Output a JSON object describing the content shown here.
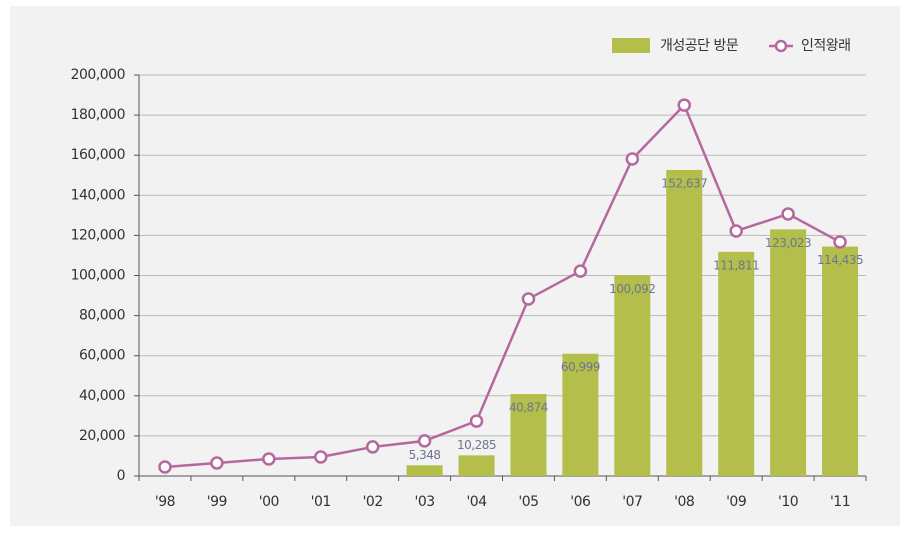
{
  "chart_data": {
    "type": "bar-line",
    "categories": [
      "'98",
      "'99",
      "'00",
      "'01",
      "'02",
      "'03",
      "'04",
      "'05",
      "'06",
      "'07",
      "'08",
      "'09",
      "'10",
      "'11"
    ],
    "series": [
      {
        "name": "개성공단 방문",
        "type": "bar",
        "color": "#b3bf4a",
        "values": [
          null,
          null,
          null,
          null,
          null,
          5348,
          10285,
          40874,
          60999,
          100092,
          152637,
          111811,
          123023,
          114435
        ],
        "value_labels": [
          null,
          null,
          null,
          null,
          null,
          "5,348",
          "10,285",
          "40,874",
          "60,999",
          "100,092",
          "152,637",
          "111,811",
          "123,023",
          "114,435"
        ]
      },
      {
        "name": "인적왕래",
        "type": "line",
        "color": "#b5689e",
        "values": [
          4500,
          6500,
          8500,
          9500,
          14500,
          17500,
          27400,
          88300,
          102200,
          158100,
          185000,
          122200,
          130700,
          116700
        ]
      }
    ],
    "ylim": [
      0,
      200000
    ],
    "yticks": [
      0,
      {
        "value": 20000,
        "label": "20,000"
      },
      {
        "value": 40000,
        "label": "40,000"
      },
      {
        "value": 60000,
        "label": "60,000"
      },
      {
        "value": 80000,
        "label": "80,000"
      },
      {
        "value": 100000,
        "label": "100,000"
      },
      {
        "value": 120000,
        "label": "120,000"
      },
      {
        "value": 140000,
        "label": "140,000"
      },
      {
        "value": 160000,
        "label": "160,000"
      },
      {
        "value": 180000,
        "label": "180,000"
      },
      {
        "value": 200000,
        "label": "200,000"
      }
    ],
    "grid": true,
    "legend": "top-right"
  }
}
